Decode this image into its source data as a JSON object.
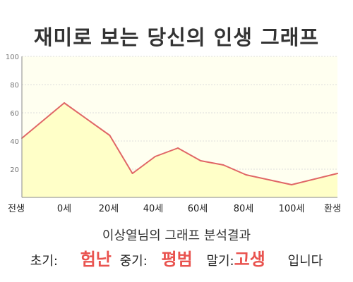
{
  "chart_data": {
    "type": "area",
    "title": "재미로 보는 당신의 인생 그래프",
    "x_labels": [
      "전생",
      "0세",
      "20세",
      "40세",
      "60세",
      "80세",
      "100세",
      "환생"
    ],
    "points": [
      {
        "x": "전생",
        "y": 42
      },
      {
        "x": "0세",
        "y": 67
      },
      {
        "x": "20세",
        "y": 44
      },
      {
        "x": 30,
        "y": 17
      },
      {
        "x": 40,
        "y": 29
      },
      {
        "x": 50,
        "y": 35
      },
      {
        "x": 60,
        "y": 26
      },
      {
        "x": 70,
        "y": 23
      },
      {
        "x": 80,
        "y": 16
      },
      {
        "x": 100,
        "y": 9
      },
      {
        "x": "환생",
        "y": 17
      }
    ],
    "y_ticks": [
      20,
      40,
      60,
      80,
      100
    ],
    "ylim": [
      0,
      100
    ],
    "grid": true,
    "colors": {
      "line": "#e06666",
      "fill": "#ffffc8",
      "plot_bg": "#fffff0"
    }
  },
  "summary": "이상열님의 그래프 분석결과",
  "result": {
    "early_label": "초기:",
    "early_value": "험난",
    "mid_label": "중기:",
    "mid_value": "평범",
    "late_label": "말기:",
    "late_value": "고생",
    "suffix": "입니다"
  }
}
